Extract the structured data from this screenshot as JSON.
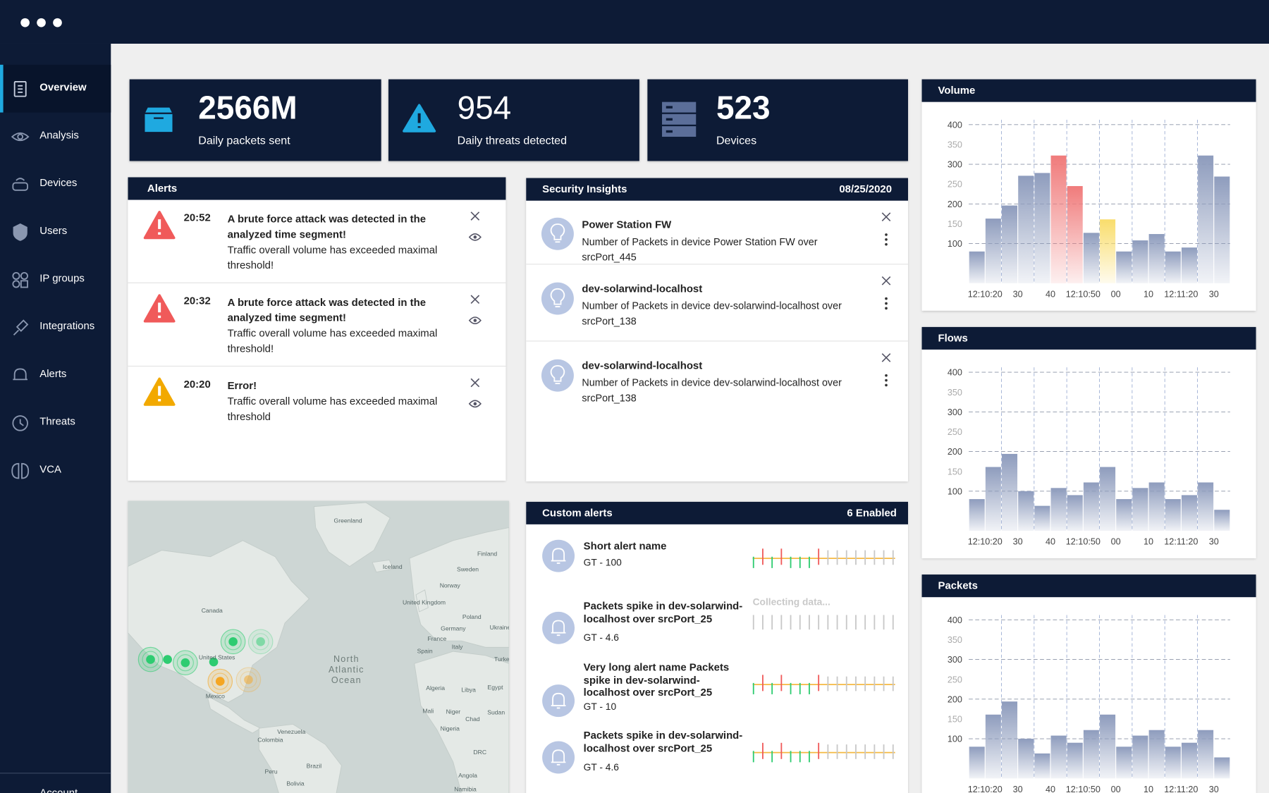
{
  "sidebar": {
    "items": [
      "Overview",
      "Analysis",
      "Devices",
      "Users",
      "IP groups",
      "Integrations",
      "Alerts",
      "Threats",
      "VCA"
    ],
    "account": "Account"
  },
  "stats": [
    {
      "value": "2566M",
      "label": "Daily packets sent"
    },
    {
      "value": "954",
      "label": "Daily threats detected"
    },
    {
      "value": "523",
      "label": "Devices"
    }
  ],
  "alerts": {
    "title": "Alerts",
    "items": [
      {
        "time": "20:52",
        "title": "A brute force attack was detected in the analyzed time segment!",
        "body": "Traffic overall volume has exceeded maximal threshold!",
        "color": "#f05a5a"
      },
      {
        "time": "20:32",
        "title": "A brute force attack was detected in the analyzed time segment!",
        "body": "Traffic overall volume has exceeded maximal threshold!",
        "color": "#f05a5a"
      },
      {
        "time": "20:20",
        "title": "Error!",
        "body": "Traffic overall volume has exceeded maximal threshold",
        "color": "#f2a900"
      }
    ]
  },
  "insights": {
    "title": "Security Insights",
    "date": "08/25/2020",
    "items": [
      {
        "title": "Power Station FW",
        "body": "Number of Packets in device Power Station FW over srcPort_445"
      },
      {
        "title": "dev-solarwind-localhost",
        "body": "Number of Packets in device dev-solarwind-localhost over srcPort_138"
      },
      {
        "title": "dev-solarwind-localhost",
        "body": "Number of Packets in device dev-solarwind-localhost over srcPort_138"
      }
    ]
  },
  "custom_alerts": {
    "title": "Custom alerts",
    "status": "6 Enabled",
    "items": [
      {
        "name": "Short alert name",
        "rule": "GT - 100"
      },
      {
        "name": "Packets spike in dev-solarwind-localhost over srcPort_25",
        "rule": "GT - 4.6",
        "status": "Collecting data..."
      },
      {
        "name": "Very long alert name Packets spike in dev-solarwind-localhost over srcPort_25",
        "rule": "GT - 10"
      },
      {
        "name": "Packets spike in dev-solarwind-localhost over srcPort_25",
        "rule": "GT - 4.6"
      }
    ]
  },
  "map": {
    "labels": [
      "Greenland",
      "Iceland",
      "Finland",
      "Sweden",
      "Norway",
      "United Kingdom",
      "Canada",
      "United States",
      "Germany",
      "Ukraine",
      "Poland",
      "France",
      "Spain",
      "Italy",
      "Turkey",
      "North Atlantic Ocean",
      "Mexico",
      "Algeria",
      "Libya",
      "Egypt",
      "Mali",
      "Niger",
      "Chad",
      "Sudan",
      "Nigeria",
      "Venezuela",
      "Colombia",
      "Brazil",
      "Peru",
      "Bolivia",
      "DRC",
      "Angola",
      "Namibia"
    ]
  },
  "chart_data": [
    {
      "type": "bar",
      "title": "Volume",
      "categories": [
        "12:10:20",
        null,
        "30",
        null,
        "40",
        null,
        "12:10:50",
        null,
        "00",
        null,
        "10",
        null,
        "12:11:20",
        null,
        "30",
        null
      ],
      "values": [
        80,
        163,
        196,
        271,
        278,
        322,
        245,
        127,
        161,
        80,
        108,
        124,
        80,
        90,
        322,
        269
      ],
      "colors": [
        "#8e9cbd",
        "#8e9cbd",
        "#8e9cbd",
        "#8e9cbd",
        "#8e9cbd",
        "#f07b7b",
        "#f07b7b",
        "#8e9cbd",
        "#f9dd6c",
        "#8e9cbd",
        "#8e9cbd",
        "#8e9cbd",
        "#8e9cbd",
        "#8e9cbd",
        "#8e9cbd",
        "#8e9cbd"
      ],
      "ylim": [
        0,
        400
      ],
      "yticks": [
        100,
        150,
        200,
        250,
        300,
        350,
        400
      ]
    },
    {
      "type": "bar",
      "title": "Flows",
      "categories": [
        "12:10:20",
        null,
        "30",
        null,
        "40",
        null,
        "12:10:50",
        null,
        "00",
        null,
        "10",
        null,
        "12:11:20",
        null,
        "30",
        null
      ],
      "values": [
        80,
        161,
        194,
        100,
        63,
        108,
        90,
        122,
        161,
        80,
        108,
        122,
        80,
        90,
        122,
        53
      ],
      "color": "#8e9cbd",
      "ylim": [
        0,
        400
      ],
      "yticks": [
        100,
        150,
        200,
        250,
        300,
        350,
        400
      ]
    },
    {
      "type": "bar",
      "title": "Packets",
      "categories": [
        "12:10:20",
        null,
        "30",
        null,
        "40",
        null,
        "12:10:50",
        null,
        "00",
        null,
        "10",
        null,
        "12:11:20",
        null,
        "30",
        null
      ],
      "values": [
        80,
        161,
        194,
        100,
        63,
        108,
        90,
        122,
        161,
        80,
        108,
        122,
        80,
        90,
        122,
        53
      ],
      "color": "#8e9cbd",
      "ylim": [
        0,
        400
      ],
      "yticks": [
        100,
        150,
        200,
        250,
        300,
        350,
        400
      ]
    }
  ]
}
